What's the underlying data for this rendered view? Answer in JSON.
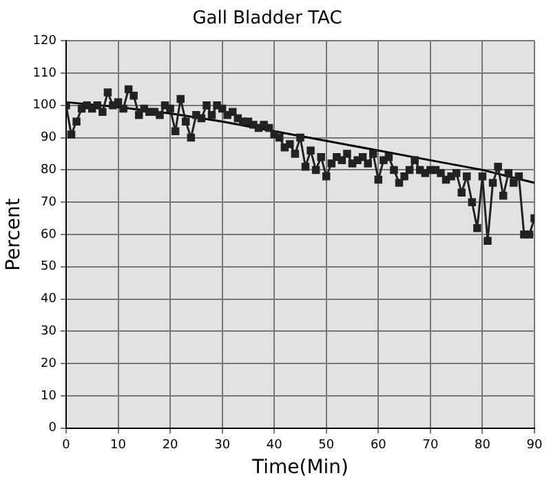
{
  "chart_data": {
    "type": "line",
    "title": "Gall Bladder TAC",
    "xlabel": "Time(Min)",
    "ylabel": "Percent",
    "xlim": [
      0,
      90
    ],
    "xticks": [
      0,
      10,
      20,
      30,
      40,
      50,
      60,
      70,
      80,
      90
    ],
    "ylim": [
      0,
      120
    ],
    "yticks": [
      0,
      10,
      20,
      30,
      40,
      50,
      60,
      70,
      80,
      90,
      100,
      110,
      120
    ],
    "grid": true,
    "legend": false,
    "series": [
      {
        "color": "#222222",
        "marker": "square",
        "x": [
          0,
          1,
          2,
          3,
          4,
          5,
          6,
          7,
          8,
          9,
          10,
          11,
          12,
          13,
          14,
          15,
          16,
          17,
          18,
          19,
          20,
          21,
          22,
          23,
          24,
          25,
          26,
          27,
          28,
          29,
          30,
          31,
          32,
          33,
          34,
          35,
          36,
          37,
          38,
          39,
          40,
          41,
          42,
          43,
          44,
          45,
          46,
          47,
          48,
          49,
          50,
          51,
          52,
          53,
          54,
          55,
          56,
          57,
          58,
          59,
          60,
          61,
          62,
          63,
          64,
          65,
          66,
          67,
          68,
          69,
          70,
          71,
          72,
          73,
          74,
          75,
          76,
          77,
          78,
          79,
          80,
          81,
          82,
          83,
          84,
          85,
          86,
          87,
          88,
          89,
          90
        ],
        "values": [
          100,
          91,
          95,
          99,
          100,
          99,
          100,
          98,
          104,
          100,
          101,
          99,
          105,
          103,
          97,
          99,
          98,
          98,
          97,
          100,
          99,
          92,
          102,
          95,
          90,
          97,
          96,
          100,
          97,
          100,
          99,
          97,
          98,
          96,
          95,
          95,
          94,
          93,
          94,
          93,
          91,
          90,
          87,
          88,
          85,
          90,
          81,
          86,
          80,
          84,
          78,
          82,
          84,
          83,
          85,
          82,
          83,
          84,
          82,
          85,
          77,
          83,
          84,
          80,
          76,
          78,
          80,
          83,
          80,
          79,
          80,
          80,
          79,
          77,
          78,
          79,
          73,
          78,
          70,
          62,
          78,
          58,
          76,
          81,
          72,
          79,
          76,
          78,
          60,
          60,
          65
        ]
      },
      {
        "color": "#000000",
        "marker": "none",
        "x": [
          0,
          10,
          20,
          30,
          40,
          50,
          60,
          70,
          80,
          90
        ],
        "values": [
          101,
          99.5,
          97.5,
          95,
          92,
          89,
          86,
          83,
          80,
          76
        ]
      }
    ]
  }
}
